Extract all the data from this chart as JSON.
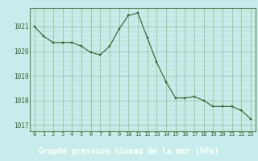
{
  "x": [
    0,
    1,
    2,
    3,
    4,
    5,
    6,
    7,
    8,
    9,
    10,
    11,
    12,
    13,
    14,
    15,
    16,
    17,
    18,
    19,
    20,
    21,
    22,
    23
  ],
  "y": [
    1021.0,
    1020.6,
    1020.35,
    1020.35,
    1020.35,
    1020.2,
    1019.95,
    1019.85,
    1020.2,
    1020.9,
    1021.45,
    1021.55,
    1020.55,
    1019.55,
    1018.75,
    1018.1,
    1018.1,
    1018.15,
    1018.0,
    1017.75,
    1017.75,
    1017.75,
    1017.6,
    1017.25
  ],
  "line_color": "#2d5e2d",
  "marker_color": "#2d5e2d",
  "bg_color": "#c8ecec",
  "grid_color_major": "#90b890",
  "grid_color_minor": "#b0d4b0",
  "xlabel": "Graphe pression niveau de la mer (hPa)",
  "xlabel_bg": "#3a7a3a",
  "xlabel_color": "#ffffff",
  "ylim": [
    1016.75,
    1021.75
  ],
  "yticks": [
    1017,
    1018,
    1019,
    1020,
    1021
  ],
  "xticks": [
    0,
    1,
    2,
    3,
    4,
    5,
    6,
    7,
    8,
    9,
    10,
    11,
    12,
    13,
    14,
    15,
    16,
    17,
    18,
    19,
    20,
    21,
    22,
    23
  ],
  "xtick_labels": [
    "0",
    "1",
    "2",
    "3",
    "4",
    "5",
    "6",
    "7",
    "8",
    "9",
    "10",
    "11",
    "12",
    "13",
    "14",
    "15",
    "16",
    "17",
    "18",
    "19",
    "20",
    "21",
    "22",
    "23"
  ],
  "xtick_fontsize": 5.0,
  "ytick_fontsize": 5.5,
  "xlabel_fontsize": 7.0,
  "marker_size": 2.0,
  "line_width": 0.8,
  "spine_color": "#5a8a5a"
}
